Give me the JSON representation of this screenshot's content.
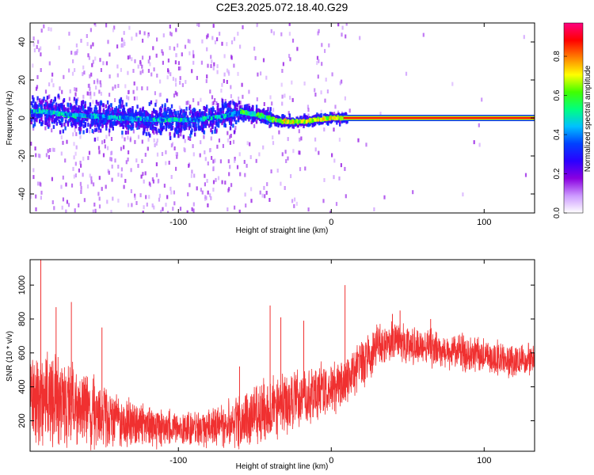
{
  "title": "C2E3.2025.072.18.40.G29",
  "chart_data": [
    {
      "type": "heatmap",
      "xlabel": "Height of straight line (km)",
      "ylabel": "Frequency (Hz)",
      "xlim": [
        -197,
        133
      ],
      "ylim": [
        -50,
        50
      ],
      "x_ticks": [
        -100,
        0,
        100
      ],
      "x_tick_labels": [
        "-100",
        "0",
        "100"
      ],
      "y_ticks": [
        -40,
        -20,
        0,
        20,
        40
      ],
      "y_tick_labels": [
        "-40",
        "-20",
        "0",
        "20",
        "40"
      ],
      "grid": false,
      "colorbar": {
        "label": "Normalized spectral amplitude",
        "range": [
          0,
          0.97
        ],
        "ticks": [
          0,
          0.2,
          0.4,
          0.6,
          0.8
        ],
        "tick_labels": [
          "0.0",
          "0.2",
          "0.4",
          "0.6",
          "0.8"
        ],
        "colormap": [
          "#ffffff",
          "#cc99ff",
          "#8a00e0",
          "#2b00ff",
          "#0040ff",
          "#00c0ff",
          "#00ff80",
          "#40ff00",
          "#ffff00",
          "#ff8000",
          "#ff0000",
          "#ff0080"
        ]
      },
      "ridge": [
        {
          "x": -190,
          "f": 3.5
        },
        {
          "x": -170,
          "f": 1.5
        },
        {
          "x": -150,
          "f": 0.5
        },
        {
          "x": -130,
          "f": -0.5
        },
        {
          "x": -110,
          "f": -1.0
        },
        {
          "x": -90,
          "f": -1.0
        },
        {
          "x": -70,
          "f": 1.0
        },
        {
          "x": -60,
          "f": 3.0
        },
        {
          "x": -50,
          "f": 2.0
        },
        {
          "x": -40,
          "f": -0.5
        },
        {
          "x": -30,
          "f": -2.0
        },
        {
          "x": -20,
          "f": -2.0
        },
        {
          "x": -10,
          "f": -1.0
        },
        {
          "x": 0,
          "f": 0.0
        },
        {
          "x": 8,
          "f": 0.0
        },
        {
          "x": 133,
          "f": 0.0
        }
      ],
      "carrier_band": {
        "x_start": 8,
        "x_end": 133,
        "f": 0.0,
        "amplitude": 0.9
      }
    },
    {
      "type": "line",
      "xlabel": "Height of straight line (km)",
      "ylabel": "SNR (10 * v/v)",
      "xlim": [
        -197,
        133
      ],
      "ylim": [
        20,
        1150
      ],
      "x_ticks": [
        -100,
        0,
        100
      ],
      "x_tick_labels": [
        "-100",
        "0",
        "100"
      ],
      "y_ticks": [
        200,
        400,
        600,
        800,
        1000
      ],
      "y_tick_labels": [
        "200",
        "400",
        "600",
        "800",
        "1000"
      ],
      "grid": false,
      "series_color": "#f03030",
      "envelope": [
        {
          "x": -197,
          "mean": 340,
          "spread": 260
        },
        {
          "x": -180,
          "mean": 320,
          "spread": 260
        },
        {
          "x": -160,
          "mean": 260,
          "spread": 220
        },
        {
          "x": -140,
          "mean": 200,
          "spread": 160
        },
        {
          "x": -120,
          "mean": 165,
          "spread": 120
        },
        {
          "x": -100,
          "mean": 150,
          "spread": 100
        },
        {
          "x": -80,
          "mean": 160,
          "spread": 110
        },
        {
          "x": -60,
          "mean": 200,
          "spread": 150
        },
        {
          "x": -40,
          "mean": 270,
          "spread": 190
        },
        {
          "x": -20,
          "mean": 330,
          "spread": 170
        },
        {
          "x": 0,
          "mean": 380,
          "spread": 160
        },
        {
          "x": 10,
          "mean": 440,
          "spread": 150
        },
        {
          "x": 20,
          "mean": 540,
          "spread": 140
        },
        {
          "x": 30,
          "mean": 640,
          "spread": 120
        },
        {
          "x": 40,
          "mean": 670,
          "spread": 110
        },
        {
          "x": 60,
          "mean": 640,
          "spread": 110
        },
        {
          "x": 80,
          "mean": 610,
          "spread": 100
        },
        {
          "x": 100,
          "mean": 580,
          "spread": 100
        },
        {
          "x": 120,
          "mean": 560,
          "spread": 100
        },
        {
          "x": 133,
          "mean": 550,
          "spread": 100
        }
      ],
      "spikes": [
        {
          "x": -190,
          "y": 1150
        },
        {
          "x": -180,
          "y": 870
        },
        {
          "x": -170,
          "y": 900
        },
        {
          "x": -150,
          "y": 750
        },
        {
          "x": -60,
          "y": 520
        },
        {
          "x": -40,
          "y": 880
        },
        {
          "x": -33,
          "y": 810
        },
        {
          "x": -18,
          "y": 790
        },
        {
          "x": 9,
          "y": 1000
        },
        {
          "x": 40,
          "y": 830
        },
        {
          "x": 45,
          "y": 850
        },
        {
          "x": 65,
          "y": 800
        }
      ]
    }
  ]
}
